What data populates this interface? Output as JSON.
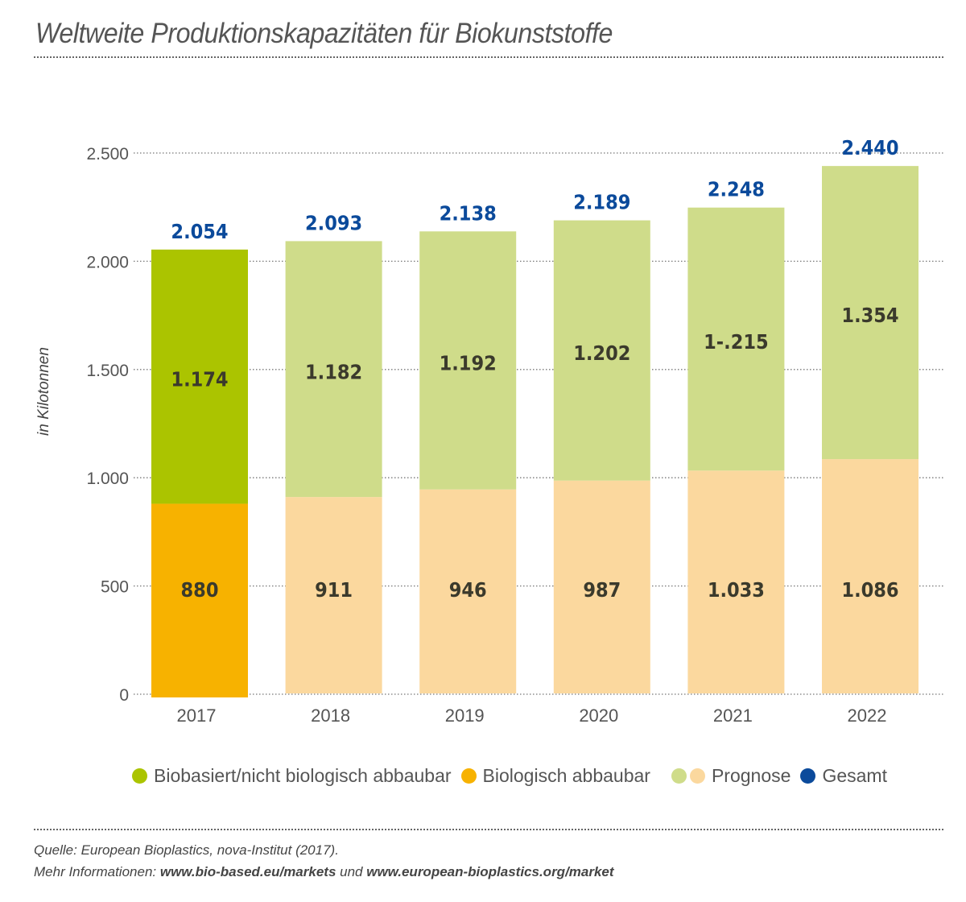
{
  "title": "Weltweite Produktionskapazitäten für Biokunststoffe",
  "chart_data": {
    "type": "bar",
    "stacked": true,
    "title": "Weltweite Produktionskapazitäten für Biokunststoffe",
    "ylabel": "in Kilotonnen",
    "xlabel": "",
    "ylim": [
      0,
      2500
    ],
    "yticks": [
      0,
      500,
      1000,
      1500,
      2000,
      2500
    ],
    "ytick_labels": [
      "0",
      "500",
      "1.000",
      "1.500",
      "2.000",
      "2.500"
    ],
    "grid": true,
    "legend_position": "bottom",
    "categories": [
      "2017",
      "2018",
      "2019",
      "2020",
      "2021",
      "2022"
    ],
    "forecast": [
      false,
      true,
      true,
      true,
      true,
      true
    ],
    "series": [
      {
        "name": "Biologisch abbaubar",
        "values": [
          880,
          911,
          946,
          987,
          1033,
          1086
        ],
        "labels": [
          "880",
          "911",
          "946",
          "987",
          "1.033",
          "1.086"
        ]
      },
      {
        "name": "Biobasiert/nicht biologisch abbaubar",
        "values": [
          1174,
          1182,
          1192,
          1202,
          1215,
          1354
        ],
        "labels": [
          "1.174",
          "1.182",
          "1.192",
          "1.202",
          "1-.215",
          "1.354"
        ]
      }
    ],
    "totals": {
      "name": "Gesamt",
      "values": [
        2054,
        2093,
        2138,
        2189,
        2248,
        2440
      ],
      "labels": [
        "2.054",
        "2.093",
        "2.138",
        "2.189",
        "2.248",
        "2.440"
      ]
    },
    "colors": {
      "biobased": "#abc400",
      "biodegradable": "#f7b200",
      "forecast_biobased": "#cfdc8a",
      "forecast_biodegradable": "#fbd89e",
      "total": "#0b4a9b"
    }
  },
  "legend": {
    "items": [
      {
        "label": "Biobasiert/nicht biologisch abbaubar"
      },
      {
        "label": "Biologisch abbaubar"
      },
      {
        "label": "Prognose"
      },
      {
        "label": "Gesamt"
      }
    ]
  },
  "footer": {
    "source": "Quelle: European Bioplastics, nova-Institut (2017).",
    "more_prefix": "Mehr Informationen: ",
    "link1": "www.bio-based.eu/markets",
    "und": " und ",
    "link2": "www.european-bioplastics.org/market"
  }
}
